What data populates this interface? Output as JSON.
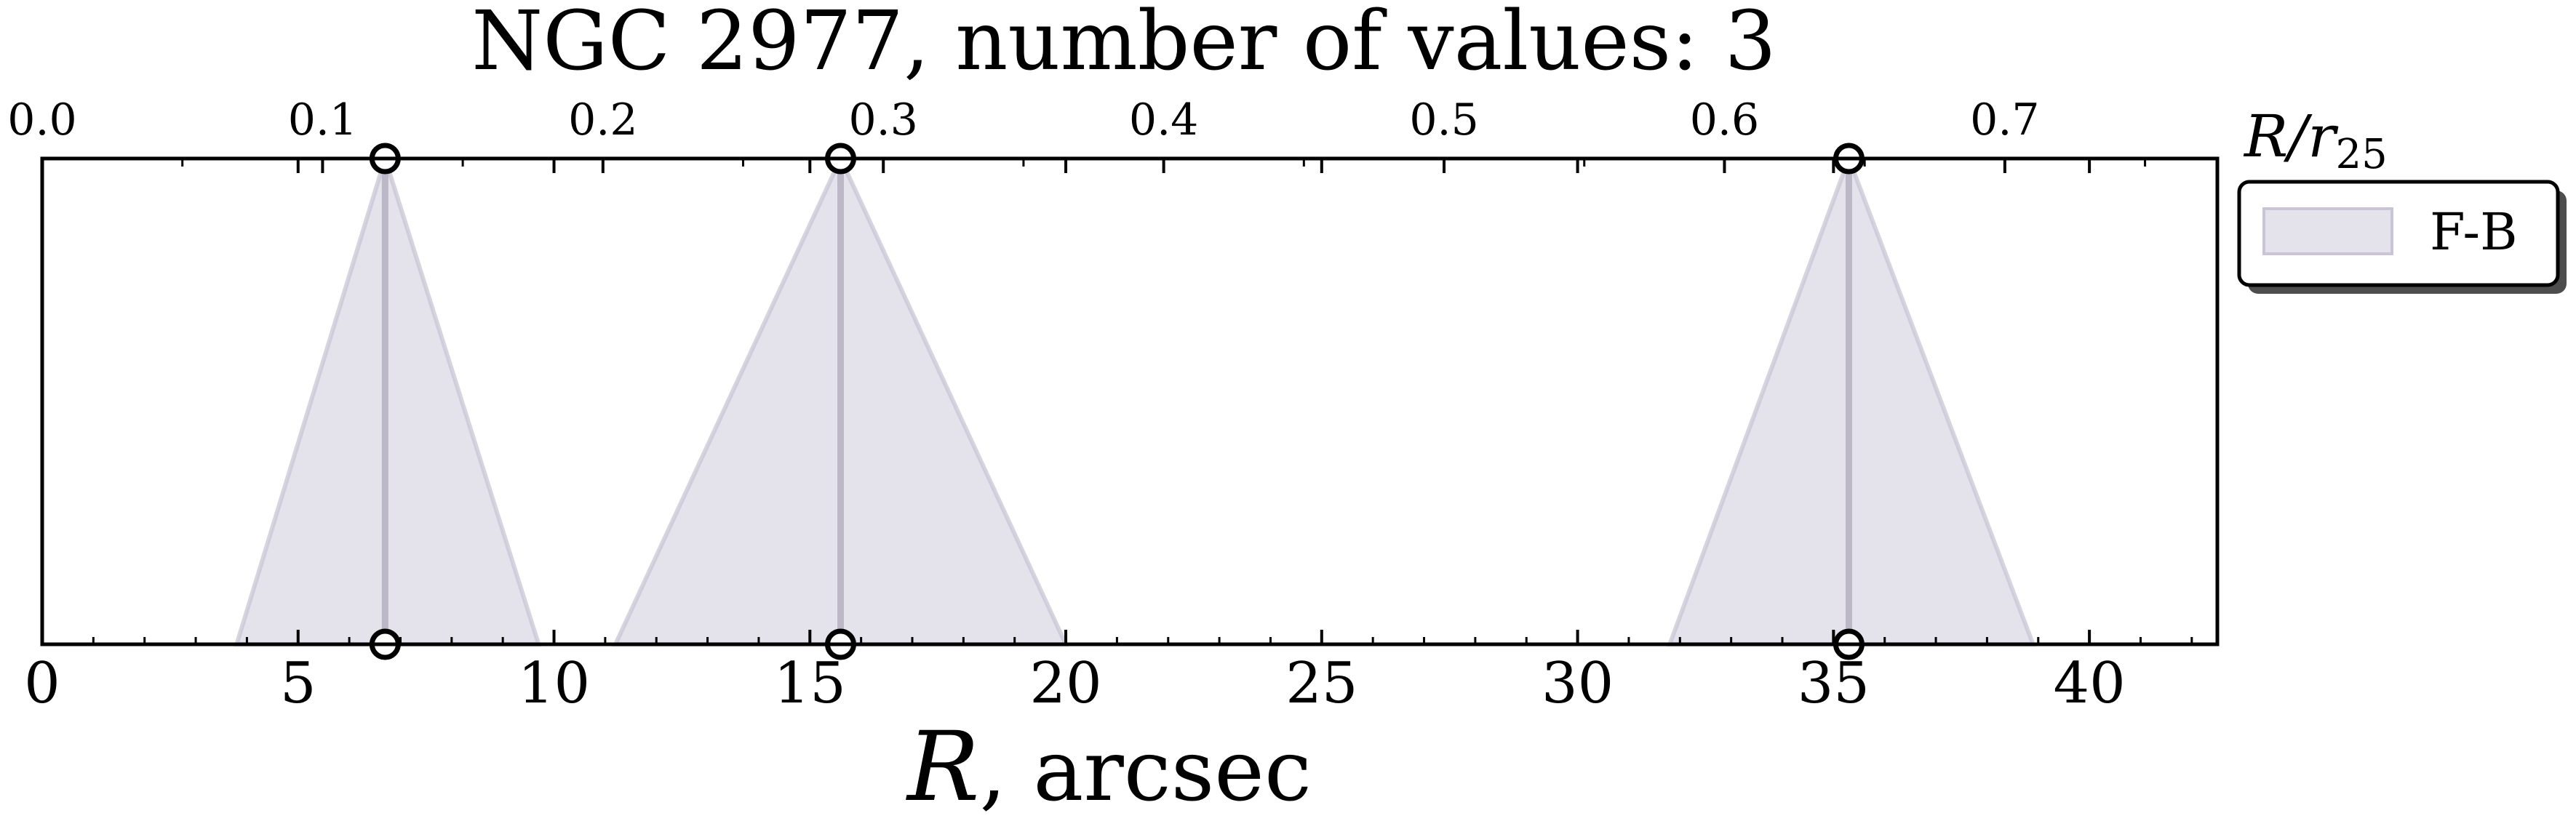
{
  "chart_data": {
    "type": "area",
    "title": "NGC 2977, number of values: 3",
    "xlabel_symbol": "R",
    "xlabel_unit": ", arcsec",
    "top_axis_label": "R/r",
    "top_axis_label_sub": "25",
    "xlim": [
      0,
      42.5
    ],
    "x_ticks": [
      "0",
      "5",
      "10",
      "15",
      "20",
      "25",
      "30",
      "35",
      "40"
    ],
    "top_xlim": [
      0,
      0.7758
    ],
    "top_ticks": [
      "0.0",
      "0.1",
      "0.2",
      "0.3",
      "0.4",
      "0.5",
      "0.6",
      "0.7"
    ],
    "grid": false,
    "legend": {
      "placement": "outside-top-right"
    },
    "series": [
      {
        "name": "F-B",
        "color": "#c9c5d6",
        "points": [
          {
            "x": 6.7,
            "spread_left": 2.9,
            "spread_right": 3.0
          },
          {
            "x": 15.6,
            "spread_left": 4.4,
            "spread_right": 4.4
          },
          {
            "x": 35.3,
            "spread_left": 3.5,
            "spread_right": 3.6
          }
        ]
      }
    ]
  }
}
